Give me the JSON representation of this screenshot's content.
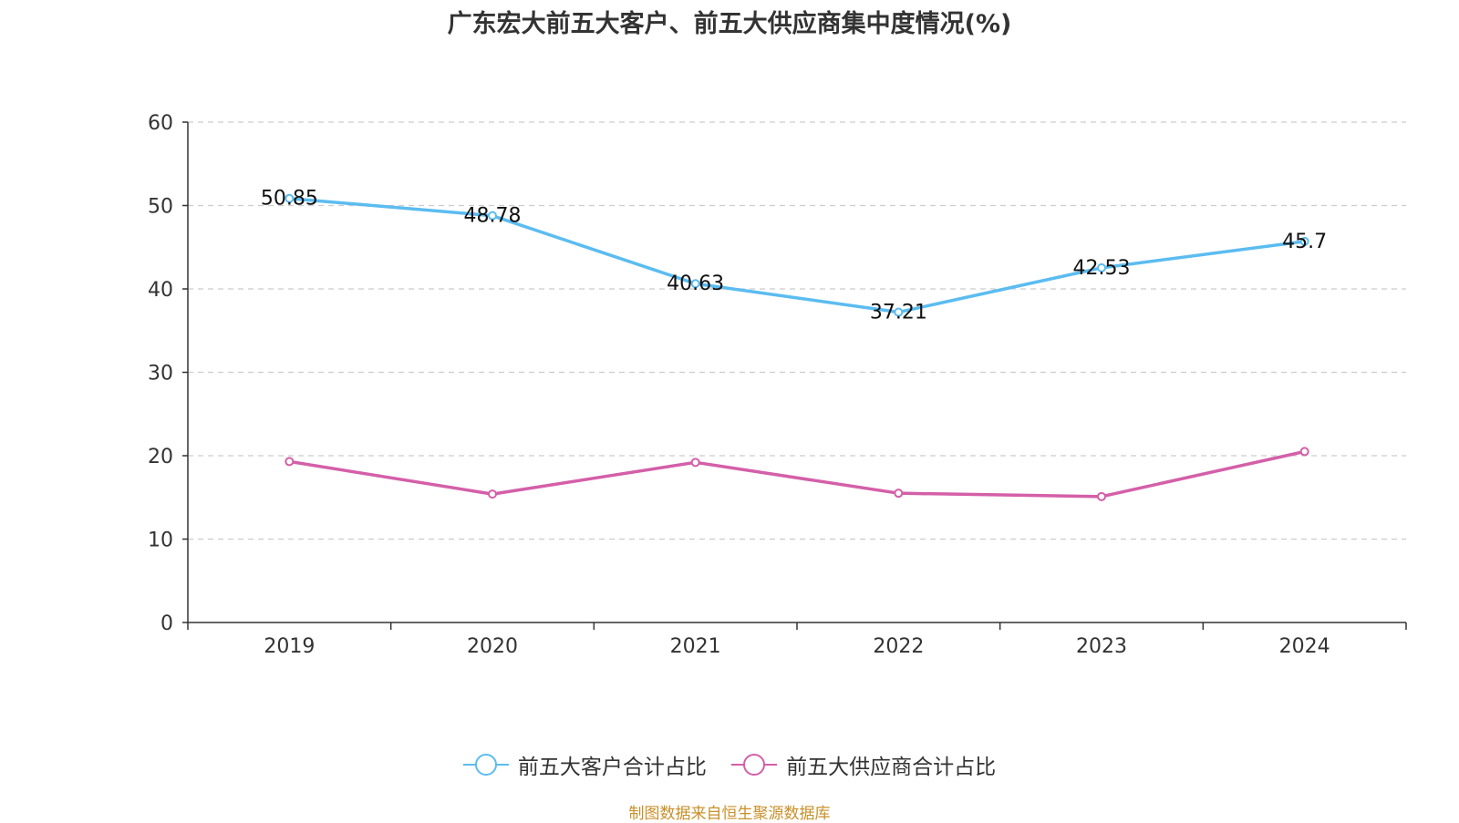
{
  "chart_data": {
    "type": "line",
    "title": "广东宏大前五大客户、前五大供应商集中度情况(%)",
    "categories": [
      "2019",
      "2020",
      "2021",
      "2022",
      "2023",
      "2024"
    ],
    "series": [
      {
        "name": "前五大客户合计占比",
        "values": [
          50.85,
          48.78,
          40.63,
          37.21,
          42.53,
          45.7
        ],
        "labels": [
          "50.85",
          "48.78",
          "40.63",
          "37.21",
          "42.53",
          "45.7"
        ],
        "color": "#5bbcf0",
        "show_labels": true
      },
      {
        "name": "前五大供应商合计占比",
        "values": [
          19.3,
          15.4,
          19.2,
          15.5,
          15.1,
          20.5
        ],
        "color": "#d45fa8",
        "show_labels": false
      }
    ],
    "y_ticks": [
      "0",
      "10",
      "20",
      "30",
      "40",
      "50",
      "60"
    ],
    "ylim": [
      0,
      60
    ],
    "grid": true,
    "legend": "bottom-center",
    "xlabel": "",
    "ylabel": ""
  },
  "source": {
    "text": "制图数据来自恒生聚源数据库",
    "color": "#c8902a"
  }
}
